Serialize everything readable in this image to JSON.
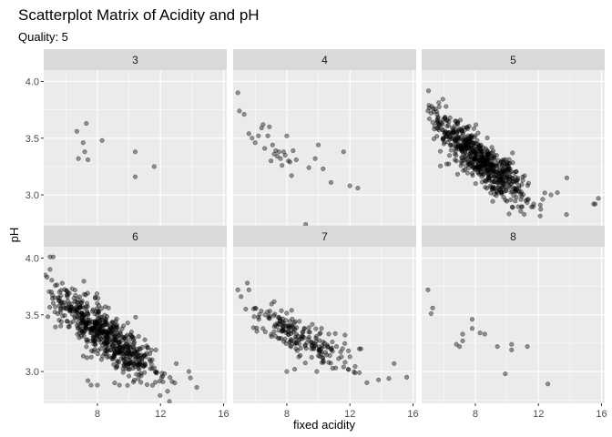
{
  "chart_data": {
    "type": "scatter",
    "title": "Scatterplot Matrix of Acidity and pH",
    "subtitle": "Quality: 5",
    "xlabel": "fixed acidity",
    "ylabel": "pH",
    "xlim": [
      4.6,
      16.2
    ],
    "ylim": [
      2.72,
      4.1
    ],
    "x_ticks": [
      8,
      12,
      16
    ],
    "x_tick_labels": [
      "8",
      "12",
      "16"
    ],
    "y_ticks": [
      3.0,
      3.5,
      4.0
    ],
    "y_tick_labels": [
      "3.0",
      "3.5",
      "4.0"
    ],
    "grid": true,
    "point_color": "#000000",
    "point_opacity": 0.4,
    "panel_bg": "#ebebeb",
    "strip_bg": "#d9d9d9",
    "panels": [
      {
        "label": "3",
        "points": [
          [
            6.7,
            3.56
          ],
          [
            7.3,
            3.63
          ],
          [
            7.1,
            3.46
          ],
          [
            6.8,
            3.32
          ],
          [
            7.2,
            3.38
          ],
          [
            7.4,
            3.31
          ],
          [
            8.3,
            3.48
          ],
          [
            10.4,
            3.38
          ],
          [
            10.4,
            3.16
          ],
          [
            11.6,
            3.25
          ]
        ]
      },
      {
        "label": "4",
        "points": [
          [
            4.9,
            3.9
          ],
          [
            5.0,
            3.74
          ],
          [
            5.3,
            3.71
          ],
          [
            5.6,
            3.54
          ],
          [
            5.8,
            3.5
          ],
          [
            6.0,
            3.46
          ],
          [
            6.2,
            3.52
          ],
          [
            6.4,
            3.59
          ],
          [
            6.5,
            3.62
          ],
          [
            6.6,
            3.41
          ],
          [
            6.8,
            3.52
          ],
          [
            6.9,
            3.6
          ],
          [
            7.0,
            3.3
          ],
          [
            7.1,
            3.44
          ],
          [
            7.2,
            3.36
          ],
          [
            7.3,
            3.39
          ],
          [
            7.5,
            3.38
          ],
          [
            7.6,
            3.32
          ],
          [
            7.7,
            3.26
          ],
          [
            7.8,
            3.38
          ],
          [
            7.9,
            3.35
          ],
          [
            8.0,
            3.52
          ],
          [
            8.2,
            3.29
          ],
          [
            8.3,
            3.17
          ],
          [
            8.4,
            3.39
          ],
          [
            8.6,
            3.31
          ],
          [
            9.2,
            2.74
          ],
          [
            9.4,
            3.24
          ],
          [
            9.8,
            3.32
          ],
          [
            10.0,
            3.44
          ],
          [
            10.3,
            3.23
          ],
          [
            10.8,
            3.11
          ],
          [
            11.6,
            3.38
          ],
          [
            12.0,
            3.08
          ],
          [
            12.5,
            3.06
          ],
          [
            7.4,
            3.34
          ],
          [
            8.1,
            3.3
          ]
        ]
      },
      {
        "label": "5",
        "scatter_cloud": {
          "count": 640,
          "x_center": 8.3,
          "x_sd": 1.7,
          "slope": -0.11,
          "intercept": 4.23,
          "y_sd": 0.1,
          "x_min": 5.0,
          "x_max": 15.9
        },
        "points": [
          [
            5.0,
            3.74
          ],
          [
            5.3,
            3.64
          ],
          [
            5.4,
            3.58
          ],
          [
            6.4,
            3.68
          ],
          [
            15.5,
            2.92
          ],
          [
            15.8,
            2.97
          ],
          [
            15.6,
            2.92
          ],
          [
            12.8,
            3.0
          ],
          [
            13.2,
            3.02
          ],
          [
            11.7,
            2.92
          ],
          [
            11.2,
            2.95
          ],
          [
            9.8,
            2.98
          ],
          [
            13.8,
            3.15
          ]
        ]
      },
      {
        "label": "6",
        "scatter_cloud": {
          "count": 620,
          "x_center": 8.4,
          "x_sd": 1.8,
          "slope": -0.1,
          "intercept": 4.17,
          "y_sd": 0.1,
          "x_min": 4.7,
          "x_max": 15.6
        },
        "points": [
          [
            4.7,
            3.85
          ],
          [
            5.0,
            4.01
          ],
          [
            5.2,
            4.01
          ],
          [
            5.0,
            3.9
          ],
          [
            5.1,
            3.7
          ],
          [
            5.3,
            3.65
          ],
          [
            5.6,
            3.58
          ],
          [
            5.8,
            3.49
          ],
          [
            6.1,
            3.68
          ],
          [
            6.4,
            3.73
          ],
          [
            7.4,
            2.92
          ],
          [
            7.6,
            2.88
          ],
          [
            8.0,
            2.88
          ],
          [
            9.1,
            2.9
          ],
          [
            9.4,
            2.88
          ],
          [
            10.0,
            2.96
          ],
          [
            13.8,
            3.0
          ],
          [
            14.3,
            2.86
          ],
          [
            13.0,
            3.07
          ]
        ]
      },
      {
        "label": "7",
        "scatter_cloud": {
          "count": 200,
          "x_center": 8.8,
          "x_sd": 1.9,
          "slope": -0.07,
          "intercept": 3.93,
          "y_sd": 0.08,
          "x_min": 5.1,
          "x_max": 15.6
        },
        "points": [
          [
            4.9,
            3.72
          ],
          [
            5.1,
            3.66
          ],
          [
            5.5,
            3.78
          ],
          [
            5.4,
            3.55
          ],
          [
            5.6,
            3.72
          ],
          [
            6.0,
            3.56
          ],
          [
            6.2,
            3.48
          ],
          [
            8.0,
            3.0
          ],
          [
            8.5,
            3.02
          ],
          [
            9.9,
            3.0
          ],
          [
            11.6,
            3.04
          ],
          [
            12.0,
            3.13
          ],
          [
            12.6,
            3.2
          ],
          [
            12.6,
            2.99
          ],
          [
            12.7,
            3.2
          ],
          [
            14.8,
            3.07
          ],
          [
            15.6,
            2.95
          ]
        ]
      },
      {
        "label": "8",
        "points": [
          [
            5.0,
            3.72
          ],
          [
            5.3,
            3.56
          ],
          [
            5.2,
            3.51
          ],
          [
            6.8,
            3.24
          ],
          [
            7.0,
            3.22
          ],
          [
            7.2,
            3.33
          ],
          [
            7.2,
            3.27
          ],
          [
            7.8,
            3.46
          ],
          [
            7.8,
            3.38
          ],
          [
            8.3,
            3.34
          ],
          [
            8.6,
            3.33
          ],
          [
            9.4,
            3.22
          ],
          [
            9.9,
            2.98
          ],
          [
            10.3,
            3.24
          ],
          [
            10.3,
            3.19
          ],
          [
            11.3,
            3.22
          ],
          [
            12.6,
            2.89
          ]
        ]
      }
    ]
  }
}
